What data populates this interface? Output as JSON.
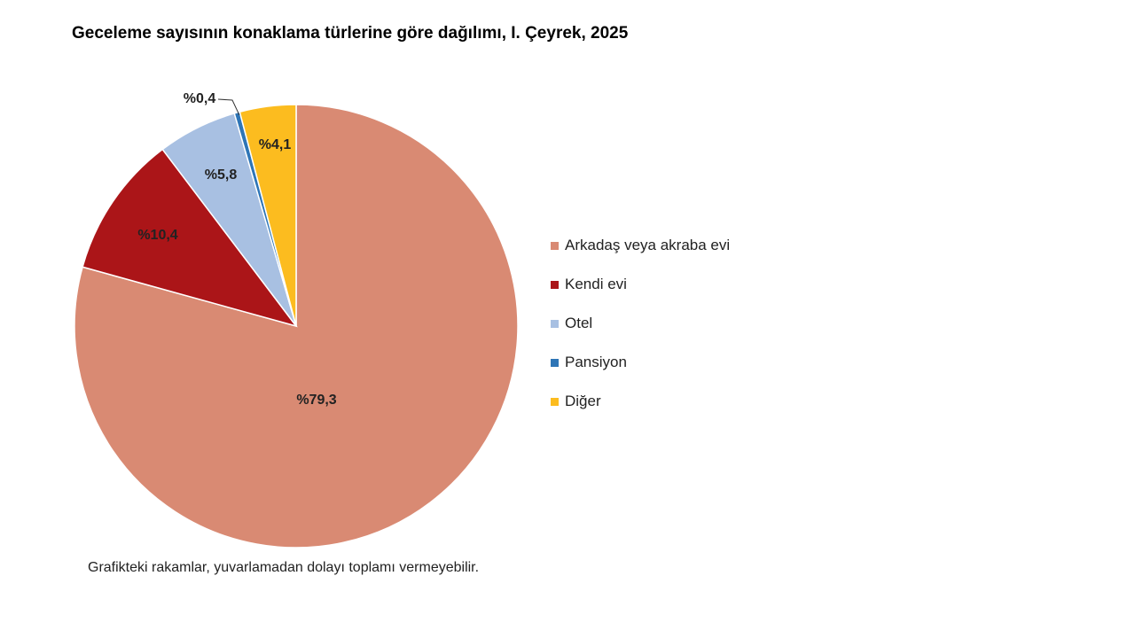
{
  "chart_data": {
    "type": "pie",
    "title": "Geceleme sayısının konaklama türlerine göre dağılımı, I. Çeyrek, 2025",
    "legend_position": "right",
    "slices": [
      {
        "name": "Arkadaş veya akraba evi",
        "value": 79.3,
        "label": "%79,3",
        "color": "#d98a73"
      },
      {
        "name": "Kendi evi",
        "value": 10.4,
        "label": "%10,4",
        "color": "#ab1518"
      },
      {
        "name": "Otel",
        "value": 5.8,
        "label": "%5,8",
        "color": "#a8c0e2"
      },
      {
        "name": "Pansiyon",
        "value": 0.4,
        "label": "%0,4",
        "color": "#2e75b6"
      },
      {
        "name": "Diğer",
        "value": 4.1,
        "label": "%4,1",
        "color": "#fcbc1f"
      }
    ],
    "footnote": "Grafikteki rakamlar, yuvarlamadan dolayı toplamı vermeyebilir."
  }
}
